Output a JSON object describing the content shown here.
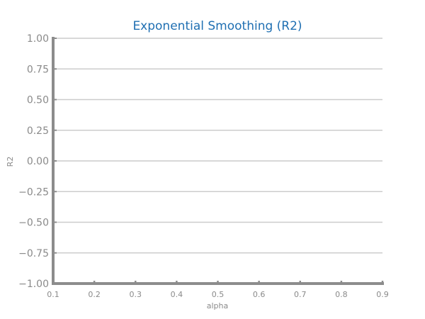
{
  "chart_data": {
    "type": "line",
    "title": "Exponential Smoothing (R2)",
    "xlabel": "alpha",
    "ylabel": "R2",
    "xlim": [
      0.1,
      0.9
    ],
    "ylim": [
      -1.0,
      1.0
    ],
    "x_ticks": [
      "0.1",
      "0.2",
      "0.3",
      "0.4",
      "0.5",
      "0.6",
      "0.7",
      "0.8",
      "0.9"
    ],
    "y_ticks": [
      "1.00",
      "0.75",
      "0.50",
      "0.25",
      "0.00",
      "−0.25",
      "−0.50",
      "−0.75",
      "−1.00"
    ],
    "grid": true,
    "series": []
  },
  "colors": {
    "title": "#1f6fb2",
    "axis": "#8c8c8c",
    "grid": "#cccccc",
    "tick_text": "#8a8a8a"
  }
}
